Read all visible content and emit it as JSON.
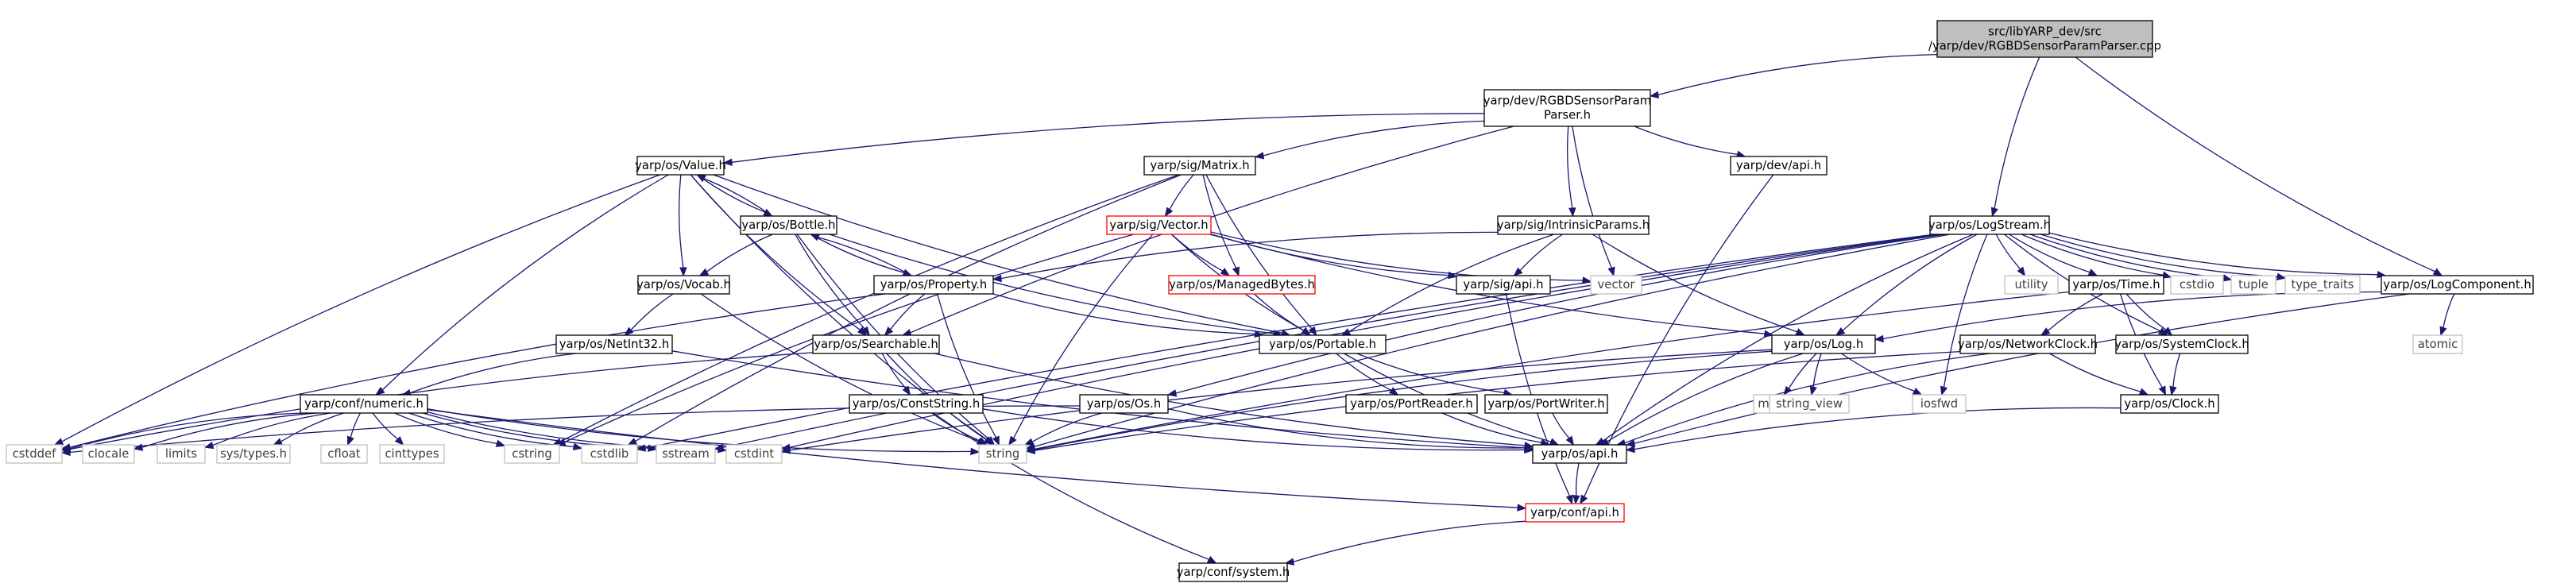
{
  "diagram": {
    "type": "include-dependency-graph",
    "colors": {
      "root_fill": "#bfbfbf",
      "node_fill": "#ffffff",
      "node_stroke": "#000000",
      "external_stroke": "#bfbfbf",
      "external_text": "#3f3f3f",
      "broken_stroke": "#ff0000",
      "edge": "#191970"
    },
    "nodes": [
      {
        "id": "root",
        "lines": [
          "src/libYARP_dev/src",
          "/yarp/dev/RGBDSensorParamParser.cpp"
        ],
        "kind": "root"
      },
      {
        "id": "rgbdh",
        "lines": [
          "yarp/dev/RGBDSensorParam",
          "Parser.h"
        ],
        "kind": "normal"
      },
      {
        "id": "value",
        "lines": [
          "yarp/os/Value.h"
        ],
        "kind": "normal"
      },
      {
        "id": "matrix",
        "lines": [
          "yarp/sig/Matrix.h"
        ],
        "kind": "normal"
      },
      {
        "id": "devapi",
        "lines": [
          "yarp/dev/api.h"
        ],
        "kind": "normal"
      },
      {
        "id": "bottle",
        "lines": [
          "yarp/os/Bottle.h"
        ],
        "kind": "normal"
      },
      {
        "id": "vector",
        "lines": [
          "yarp/sig/Vector.h"
        ],
        "kind": "broken"
      },
      {
        "id": "intrinsic",
        "lines": [
          "yarp/sig/IntrinsicParams.h"
        ],
        "kind": "normal"
      },
      {
        "id": "logstream",
        "lines": [
          "yarp/os/LogStream.h"
        ],
        "kind": "normal"
      },
      {
        "id": "vocab",
        "lines": [
          "yarp/os/Vocab.h"
        ],
        "kind": "normal"
      },
      {
        "id": "property",
        "lines": [
          "yarp/os/Property.h"
        ],
        "kind": "normal"
      },
      {
        "id": "managed",
        "lines": [
          "yarp/os/ManagedBytes.h"
        ],
        "kind": "broken"
      },
      {
        "id": "sigapi",
        "lines": [
          "yarp/sig/api.h"
        ],
        "kind": "normal"
      },
      {
        "id": "vectorstd",
        "lines": [
          "vector"
        ],
        "kind": "external"
      },
      {
        "id": "utility",
        "lines": [
          "utility"
        ],
        "kind": "external"
      },
      {
        "id": "time",
        "lines": [
          "yarp/os/Time.h"
        ],
        "kind": "normal"
      },
      {
        "id": "cstdio",
        "lines": [
          "cstdio"
        ],
        "kind": "external"
      },
      {
        "id": "tuple",
        "lines": [
          "tuple"
        ],
        "kind": "external"
      },
      {
        "id": "typetraits",
        "lines": [
          "type_traits"
        ],
        "kind": "external"
      },
      {
        "id": "logcomp",
        "lines": [
          "yarp/os/LogComponent.h"
        ],
        "kind": "normal"
      },
      {
        "id": "netint",
        "lines": [
          "yarp/os/NetInt32.h"
        ],
        "kind": "normal"
      },
      {
        "id": "searchable",
        "lines": [
          "yarp/os/Searchable.h"
        ],
        "kind": "normal"
      },
      {
        "id": "portable",
        "lines": [
          "yarp/os/Portable.h"
        ],
        "kind": "normal"
      },
      {
        "id": "log",
        "lines": [
          "yarp/os/Log.h"
        ],
        "kind": "normal"
      },
      {
        "id": "netclock",
        "lines": [
          "yarp/os/NetworkClock.h"
        ],
        "kind": "normal"
      },
      {
        "id": "sysclock",
        "lines": [
          "yarp/os/SystemClock.h"
        ],
        "kind": "normal"
      },
      {
        "id": "atomic",
        "lines": [
          "atomic"
        ],
        "kind": "external"
      },
      {
        "id": "numeric",
        "lines": [
          "yarp/conf/numeric.h"
        ],
        "kind": "normal"
      },
      {
        "id": "conststring",
        "lines": [
          "yarp/os/ConstString.h"
        ],
        "kind": "normal"
      },
      {
        "id": "os",
        "lines": [
          "yarp/os/Os.h"
        ],
        "kind": "normal"
      },
      {
        "id": "portreader",
        "lines": [
          "yarp/os/PortReader.h"
        ],
        "kind": "normal"
      },
      {
        "id": "portwriter",
        "lines": [
          "yarp/os/PortWriter.h"
        ],
        "kind": "normal"
      },
      {
        "id": "mutex",
        "lines": [
          "mutex"
        ],
        "kind": "external"
      },
      {
        "id": "stringview",
        "lines": [
          "string_view"
        ],
        "kind": "external"
      },
      {
        "id": "iosfwd",
        "lines": [
          "iosfwd"
        ],
        "kind": "external"
      },
      {
        "id": "clock",
        "lines": [
          "yarp/os/Clock.h"
        ],
        "kind": "normal"
      },
      {
        "id": "cstddef",
        "lines": [
          "cstddef"
        ],
        "kind": "external"
      },
      {
        "id": "clocale",
        "lines": [
          "clocale"
        ],
        "kind": "external"
      },
      {
        "id": "limits",
        "lines": [
          "limits"
        ],
        "kind": "external"
      },
      {
        "id": "systypes",
        "lines": [
          "sys/types.h"
        ],
        "kind": "external"
      },
      {
        "id": "cfloat",
        "lines": [
          "cfloat"
        ],
        "kind": "external"
      },
      {
        "id": "cinttypes",
        "lines": [
          "cinttypes"
        ],
        "kind": "external"
      },
      {
        "id": "cstring",
        "lines": [
          "cstring"
        ],
        "kind": "external"
      },
      {
        "id": "cstdlib",
        "lines": [
          "cstdlib"
        ],
        "kind": "external"
      },
      {
        "id": "sstream",
        "lines": [
          "sstream"
        ],
        "kind": "external"
      },
      {
        "id": "cstdint",
        "lines": [
          "cstdint"
        ],
        "kind": "external"
      },
      {
        "id": "string",
        "lines": [
          "string"
        ],
        "kind": "external"
      },
      {
        "id": "osapi",
        "lines": [
          "yarp/os/api.h"
        ],
        "kind": "normal"
      },
      {
        "id": "confapi",
        "lines": [
          "yarp/conf/api.h"
        ],
        "kind": "broken"
      },
      {
        "id": "confsys",
        "lines": [
          "yarp/conf/system.h"
        ],
        "kind": "normal"
      }
    ],
    "edges": [
      [
        "root",
        "rgbdh"
      ],
      [
        "root",
        "logstream"
      ],
      [
        "root",
        "logcomp"
      ],
      [
        "rgbdh",
        "value"
      ],
      [
        "rgbdh",
        "matrix"
      ],
      [
        "rgbdh",
        "intrinsic"
      ],
      [
        "rgbdh",
        "devapi"
      ],
      [
        "rgbdh",
        "vectorstd"
      ],
      [
        "rgbdh",
        "searchable"
      ],
      [
        "devapi",
        "confapi"
      ],
      [
        "value",
        "bottle"
      ],
      [
        "value",
        "vocab"
      ],
      [
        "value",
        "searchable"
      ],
      [
        "value",
        "portable"
      ],
      [
        "value",
        "numeric"
      ],
      [
        "value",
        "string"
      ],
      [
        "value",
        "cstddef"
      ],
      [
        "bottle",
        "value"
      ],
      [
        "bottle",
        "property"
      ],
      [
        "bottle",
        "searchable"
      ],
      [
        "bottle",
        "portable"
      ],
      [
        "bottle",
        "vocab"
      ],
      [
        "bottle",
        "string"
      ],
      [
        "property",
        "bottle"
      ],
      [
        "property",
        "searchable"
      ],
      [
        "property",
        "portable"
      ],
      [
        "property",
        "string"
      ],
      [
        "property",
        "cstddef"
      ],
      [
        "matrix",
        "vector"
      ],
      [
        "matrix",
        "managed"
      ],
      [
        "matrix",
        "portable"
      ],
      [
        "matrix",
        "cstring"
      ],
      [
        "matrix",
        "cstdlib"
      ],
      [
        "vector",
        "managed"
      ],
      [
        "vector",
        "sigapi"
      ],
      [
        "vector",
        "portable"
      ],
      [
        "vector",
        "vectorstd"
      ],
      [
        "vector",
        "log"
      ],
      [
        "vector",
        "string"
      ],
      [
        "vector",
        "cstring"
      ],
      [
        "managed",
        "portable"
      ],
      [
        "intrinsic",
        "sigapi"
      ],
      [
        "intrinsic",
        "portable"
      ],
      [
        "intrinsic",
        "property"
      ],
      [
        "intrinsic",
        "log"
      ],
      [
        "sigapi",
        "confapi"
      ],
      [
        "vocab",
        "netint"
      ],
      [
        "vocab",
        "string"
      ],
      [
        "netint",
        "numeric"
      ],
      [
        "netint",
        "osapi"
      ],
      [
        "searchable",
        "conststring"
      ],
      [
        "searchable",
        "osapi"
      ],
      [
        "searchable",
        "string"
      ],
      [
        "searchable",
        "cstddef"
      ],
      [
        "conststring",
        "osapi"
      ],
      [
        "conststring",
        "string"
      ],
      [
        "conststring",
        "confsys"
      ],
      [
        "portable",
        "portreader"
      ],
      [
        "portable",
        "portwriter"
      ],
      [
        "portable",
        "osapi"
      ],
      [
        "portreader",
        "osapi"
      ],
      [
        "portwriter",
        "osapi"
      ],
      [
        "os",
        "osapi"
      ],
      [
        "os",
        "string"
      ],
      [
        "os",
        "cstddef"
      ],
      [
        "osapi",
        "confapi"
      ],
      [
        "confapi",
        "confsys"
      ],
      [
        "numeric",
        "cstddef"
      ],
      [
        "numeric",
        "clocale"
      ],
      [
        "numeric",
        "limits"
      ],
      [
        "numeric",
        "systypes"
      ],
      [
        "numeric",
        "cfloat"
      ],
      [
        "numeric",
        "cinttypes"
      ],
      [
        "numeric",
        "cstring"
      ],
      [
        "numeric",
        "cstdlib"
      ],
      [
        "numeric",
        "sstream"
      ],
      [
        "numeric",
        "cstdint"
      ],
      [
        "numeric",
        "string"
      ],
      [
        "numeric",
        "confapi"
      ],
      [
        "logstream",
        "log"
      ],
      [
        "logstream",
        "os"
      ],
      [
        "logstream",
        "time"
      ],
      [
        "logstream",
        "sysclock"
      ],
      [
        "logstream",
        "utility"
      ],
      [
        "logstream",
        "cstdio"
      ],
      [
        "logstream",
        "tuple"
      ],
      [
        "logstream",
        "typetraits"
      ],
      [
        "logstream",
        "logcomp"
      ],
      [
        "logstream",
        "iosfwd"
      ],
      [
        "logstream",
        "osapi"
      ],
      [
        "logstream",
        "string"
      ],
      [
        "logstream",
        "sstream"
      ],
      [
        "logstream",
        "cstdlib"
      ],
      [
        "logstream",
        "cstdint"
      ],
      [
        "log",
        "mutex"
      ],
      [
        "log",
        "stringview"
      ],
      [
        "log",
        "iosfwd"
      ],
      [
        "log",
        "osapi"
      ],
      [
        "log",
        "string"
      ],
      [
        "log",
        "cstdint"
      ],
      [
        "time",
        "netclock"
      ],
      [
        "time",
        "sysclock"
      ],
      [
        "time",
        "clock"
      ],
      [
        "time",
        "string"
      ],
      [
        "netclock",
        "clock"
      ],
      [
        "netclock",
        "osapi"
      ],
      [
        "netclock",
        "string"
      ],
      [
        "sysclock",
        "clock"
      ],
      [
        "clock",
        "osapi"
      ],
      [
        "logcomp",
        "log"
      ],
      [
        "logcomp",
        "atomic"
      ],
      [
        "logcomp",
        "osapi"
      ]
    ]
  }
}
